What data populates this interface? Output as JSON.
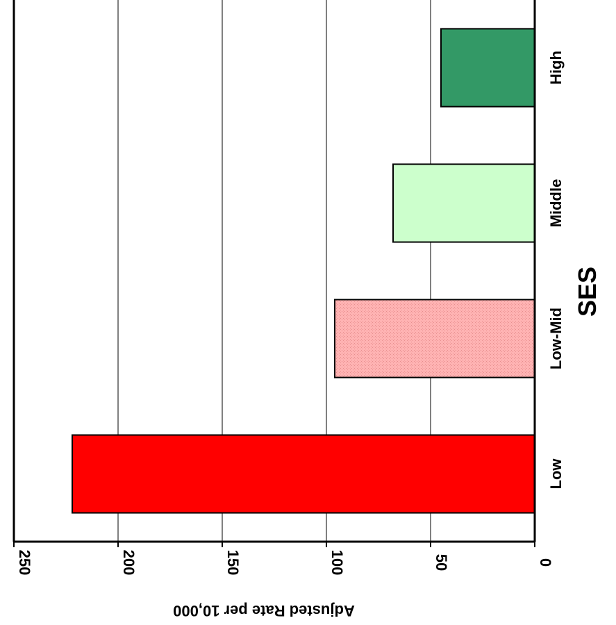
{
  "chart_data": {
    "type": "bar",
    "orientation": "rotated-90-clockwise",
    "categories": [
      "Low",
      "Low-Mid",
      "Middle",
      "High"
    ],
    "values": [
      222,
      96,
      68,
      45
    ],
    "bar_colors": [
      "#ff0000",
      "#ffb3b3",
      "#ccffcc",
      "#339966"
    ],
    "bar_patterns": [
      "solid",
      "dotted",
      "solid",
      "solid"
    ],
    "xlabel": "SES",
    "ylabel": "Adjusted Rate per 10,000",
    "ylim": [
      0,
      250
    ],
    "ytick_labels": [
      "0",
      "50",
      "100",
      "150",
      "200",
      "250"
    ],
    "grid": true
  }
}
